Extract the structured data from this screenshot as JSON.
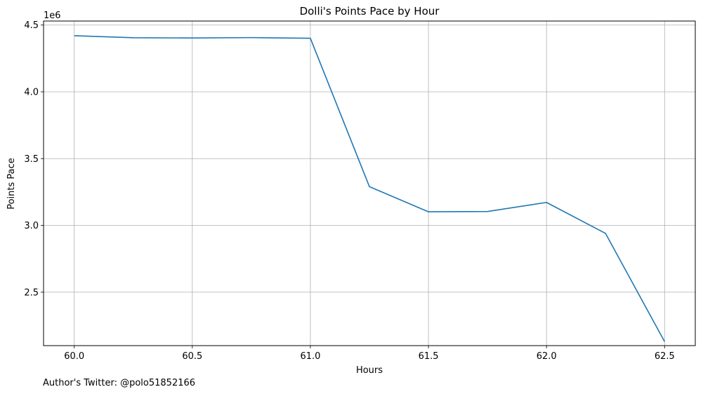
{
  "chart_data": {
    "type": "line",
    "title": "Dolli's Points Pace by Hour",
    "xlabel": "Hours",
    "ylabel": "Points Pace",
    "y_multiplier_label": "1e6",
    "xlim": [
      59.87,
      62.63
    ],
    "ylim": [
      2.1,
      4.53
    ],
    "x_ticks": [
      60.0,
      60.5,
      61.0,
      61.5,
      62.0,
      62.5
    ],
    "x_tick_labels": [
      "60.0",
      "60.5",
      "61.0",
      "61.5",
      "62.0",
      "62.5"
    ],
    "y_ticks": [
      2.5,
      3.0,
      3.5,
      4.0,
      4.5
    ],
    "y_tick_labels": [
      "2.5",
      "3.0",
      "3.5",
      "4.0",
      "4.5"
    ],
    "grid": true,
    "series": [
      {
        "color": "#1f77b4",
        "x": [
          60.0,
          60.25,
          60.5,
          60.75,
          61.0,
          61.25,
          61.5,
          61.75,
          62.0,
          62.25,
          62.5
        ],
        "y": [
          4.42,
          4.405,
          4.403,
          4.406,
          4.401,
          3.29,
          3.102,
          3.104,
          3.172,
          2.94,
          2.13
        ]
      }
    ]
  },
  "footer": {
    "author_text": "Author's Twitter: @polo51852166"
  }
}
